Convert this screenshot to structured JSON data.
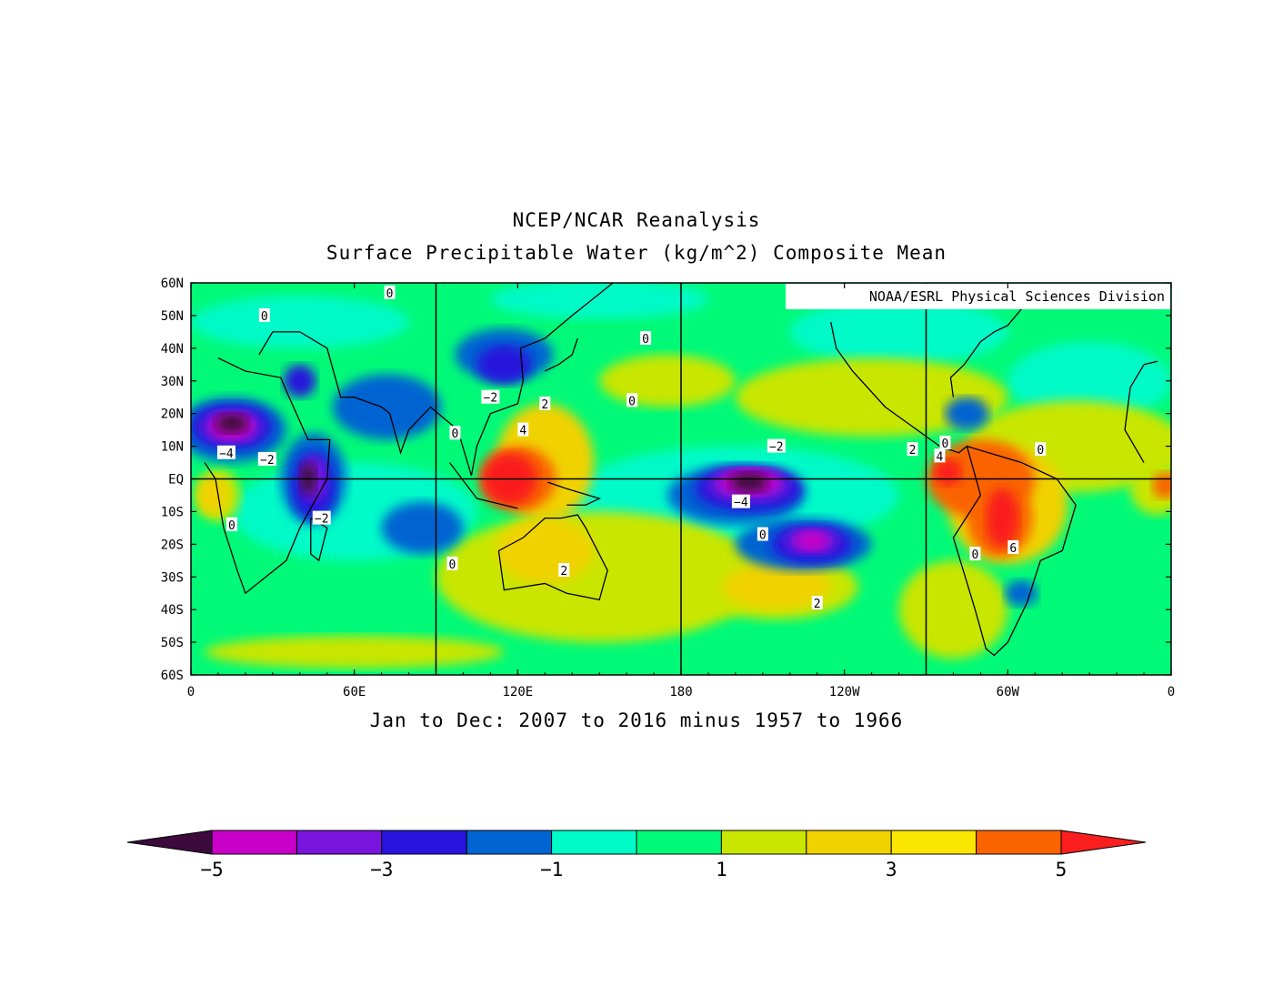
{
  "title": "NCEP/NCAR Reanalysis",
  "subtitle_top": "Surface Precipitable Water (kg/m^2) Composite Mean",
  "period": "Jan to Dec: 2007 to 2016 minus 1957 to 1966",
  "credit": "NOAA/ESRL Physical Sciences Division",
  "map": {
    "lat_range": [
      -60,
      60
    ],
    "lon_range": [
      0,
      360
    ],
    "lat_labels": [
      "60N",
      "50N",
      "40N",
      "30N",
      "20N",
      "10N",
      "EQ",
      "10S",
      "20S",
      "30S",
      "40S",
      "50S",
      "60S"
    ],
    "lon_labels": [
      "0",
      "60E",
      "120E",
      "180",
      "120W",
      "60W",
      "0"
    ],
    "lon_label_values": [
      0,
      60,
      120,
      180,
      240,
      300,
      360
    ],
    "grid_lons": [
      90,
      180,
      270
    ],
    "grid_lats": [
      0
    ],
    "contour_labels": [
      {
        "text": "0",
        "lon": 73,
        "lat": 57
      },
      {
        "text": "0",
        "lon": 27,
        "lat": 50
      },
      {
        "text": "0",
        "lon": 167,
        "lat": 43
      },
      {
        "text": "-2",
        "lon": 110,
        "lat": 25
      },
      {
        "text": "2",
        "lon": 130,
        "lat": 23
      },
      {
        "text": "0",
        "lon": 162,
        "lat": 24
      },
      {
        "text": "4",
        "lon": 122,
        "lat": 15
      },
      {
        "text": "0",
        "lon": 97,
        "lat": 14
      },
      {
        "text": "-4",
        "lon": 13,
        "lat": 8
      },
      {
        "text": "-2",
        "lon": 28,
        "lat": 6
      },
      {
        "text": "-2",
        "lon": 215,
        "lat": 10
      },
      {
        "text": "-4",
        "lon": 202,
        "lat": -7
      },
      {
        "text": "2",
        "lon": 265,
        "lat": 9
      },
      {
        "text": "4",
        "lon": 275,
        "lat": 7
      },
      {
        "text": "0",
        "lon": 277,
        "lat": 11
      },
      {
        "text": "0",
        "lon": 312,
        "lat": 9
      },
      {
        "text": "0",
        "lon": 15,
        "lat": -14
      },
      {
        "text": "-2",
        "lon": 48,
        "lat": -12
      },
      {
        "text": "0",
        "lon": 96,
        "lat": -26
      },
      {
        "text": "2",
        "lon": 137,
        "lat": -28
      },
      {
        "text": "0",
        "lon": 210,
        "lat": -17
      },
      {
        "text": "2",
        "lon": 230,
        "lat": -38
      },
      {
        "text": "0",
        "lon": 288,
        "lat": -23
      },
      {
        "text": "6",
        "lon": 302,
        "lat": -21
      }
    ]
  },
  "colorbar": {
    "bins": [
      {
        "color": "#3d0a3d"
      },
      {
        "color": "#c800c8"
      },
      {
        "color": "#7814dc"
      },
      {
        "color": "#2814dc"
      },
      {
        "color": "#0064d2"
      },
      {
        "color": "#00fac8"
      },
      {
        "color": "#00fa78"
      },
      {
        "color": "#c8e600"
      },
      {
        "color": "#f0d200"
      },
      {
        "color": "#fae600"
      },
      {
        "color": "#fa6400"
      },
      {
        "color": "#fa1e1e"
      }
    ],
    "tick_labels": [
      "-5",
      "-3",
      "-1",
      "1",
      "3",
      "5"
    ],
    "tick_values": [
      -5,
      -3,
      -1,
      1,
      3,
      5
    ],
    "range": [
      -5,
      5
    ]
  },
  "colors": {
    "neutral": "#00fa78",
    "light_neg": "#00fac8",
    "pos1": "#c8e600",
    "pos2": "#f0d200",
    "pos3": "#fa6400",
    "pos4": "#fa1e1e",
    "neg1": "#0064d2",
    "neg2": "#2814dc",
    "neg3": "#7814dc",
    "neg4": "#c800c8",
    "neg5": "#3d0a3d"
  }
}
